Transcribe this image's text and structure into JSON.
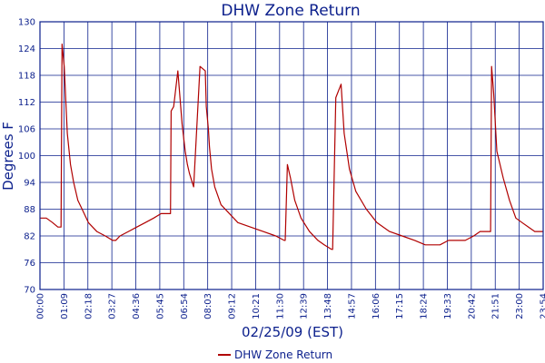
{
  "chart_data": {
    "type": "line",
    "title": "DHW Zone Return",
    "xlabel": "02/25/09 (EST)",
    "ylabel": "Degrees F",
    "ylim": [
      70,
      130
    ],
    "yticks": [
      "70",
      "76",
      "82",
      "88",
      "94",
      "100",
      "106",
      "112",
      "118",
      "124",
      "130"
    ],
    "xticks": [
      "00:00",
      "01:09",
      "02:18",
      "03:27",
      "04:36",
      "05:45",
      "06:54",
      "08:03",
      "09:12",
      "10:21",
      "11:30",
      "12:39",
      "13:48",
      "14:57",
      "16:06",
      "17:15",
      "18:24",
      "19:33",
      "20:42",
      "21:51",
      "23:00",
      "23:54"
    ],
    "grid": true,
    "legend_position": "bottom-center",
    "series": [
      {
        "name": "DHW Zone Return",
        "color": "#b00000",
        "x_hours": [
          0,
          0.3,
          0.6,
          0.85,
          1.0,
          1.05,
          1.15,
          1.3,
          1.45,
          1.6,
          1.8,
          2.0,
          2.3,
          2.7,
          3.1,
          3.45,
          3.6,
          3.8,
          4.2,
          4.6,
          5.0,
          5.4,
          5.75,
          6.05,
          6.2,
          6.23,
          6.35,
          6.55,
          6.75,
          6.9,
          7.0,
          7.1,
          7.3,
          7.6,
          7.85,
          7.9,
          8.0,
          8.05,
          8.15,
          8.3,
          8.6,
          9.0,
          9.4,
          10.0,
          10.6,
          11.2,
          11.6,
          11.65,
          11.75,
          11.9,
          12.1,
          12.4,
          12.8,
          13.2,
          13.5,
          13.85,
          13.9,
          14.05,
          14.3,
          14.45,
          14.7,
          15.0,
          15.5,
          16.0,
          16.6,
          17.2,
          17.8,
          18.3,
          18.7,
          19.0,
          19.4,
          19.8,
          20.2,
          20.6,
          20.9,
          21.2,
          21.4,
          21.45,
          21.55,
          21.7,
          22.0,
          22.3,
          22.6,
          22.9,
          23.2,
          23.5,
          23.9
        ],
        "values": [
          86,
          86,
          85,
          84,
          84,
          125,
          120,
          105,
          98,
          94,
          90,
          88,
          85,
          83,
          82,
          81,
          81,
          82,
          83,
          84,
          85,
          86,
          87,
          87,
          87,
          110,
          111,
          119,
          107,
          101,
          98,
          96,
          93,
          120,
          119,
          111,
          106,
          102,
          97,
          93,
          89,
          87,
          85,
          84,
          83,
          82,
          81,
          81,
          98,
          95,
          90,
          86,
          83,
          81,
          80,
          79,
          79,
          113,
          116,
          105,
          97,
          92,
          88,
          85,
          83,
          82,
          81,
          80,
          80,
          80,
          81,
          81,
          81,
          82,
          83,
          83,
          83,
          120,
          114,
          101,
          95,
          90,
          86,
          85,
          84,
          83,
          83
        ]
      }
    ]
  }
}
